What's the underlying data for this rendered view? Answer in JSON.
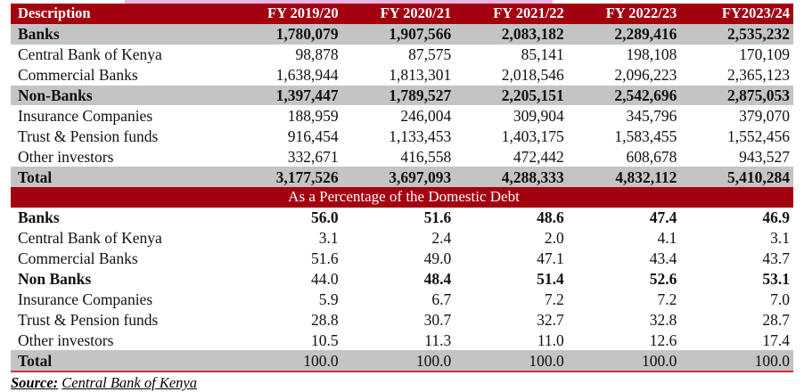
{
  "header": [
    "Description",
    "FY 2019/20",
    "FY 2020/21",
    "FY 2021/22",
    "FY 2022/23",
    "FY2023/24"
  ],
  "amounts": [
    {
      "label": "Banks",
      "values": [
        "1,780,079",
        "1,907,566",
        "2,083,182",
        "2,289,416",
        "2,535,232"
      ],
      "style": "total",
      "bold": [
        1,
        1,
        1,
        1,
        1
      ]
    },
    {
      "label": "Central Bank of Kenya",
      "values": [
        "98,878",
        "87,575",
        "85,141",
        "198,108",
        "170,109"
      ],
      "style": "",
      "bold": [
        0,
        0,
        0,
        0,
        0
      ]
    },
    {
      "label": "Commercial Banks",
      "values": [
        "1,638,944",
        "1,813,301",
        "2,018,546",
        "2,096,223",
        "2,365,123"
      ],
      "style": "",
      "bold": [
        0,
        0,
        0,
        0,
        0
      ]
    },
    {
      "label": "Non-Banks",
      "values": [
        "1,397,447",
        "1,789,527",
        "2,205,151",
        "2,542,696",
        "2,875,053"
      ],
      "style": "total",
      "bold": [
        1,
        1,
        1,
        1,
        1
      ]
    },
    {
      "label": "Insurance Companies",
      "values": [
        "188,959",
        "246,004",
        "309,904",
        "345,796",
        "379,070"
      ],
      "style": "",
      "bold": [
        0,
        0,
        0,
        0,
        0
      ]
    },
    {
      "label": "Trust & Pension funds",
      "values": [
        "916,454",
        "1,133,453",
        "1,403,175",
        "1,583,455",
        "1,552,456"
      ],
      "style": "",
      "bold": [
        0,
        0,
        0,
        0,
        0
      ]
    },
    {
      "label": "Other investors",
      "values": [
        "332,671",
        "416,558",
        "472,442",
        "608,678",
        "943,527"
      ],
      "style": "",
      "bold": [
        0,
        0,
        0,
        0,
        0
      ]
    },
    {
      "label": "Total",
      "values": [
        "3,177,526",
        "3,697,093",
        "4,288,333",
        "4,832,112",
        "5,410,284"
      ],
      "style": "total",
      "bold": [
        1,
        1,
        1,
        1,
        1
      ]
    }
  ],
  "section_title": "As a Percentage of the Domestic Debt",
  "percentages": [
    {
      "label": "Banks",
      "values": [
        "56.0",
        "51.6",
        "48.6",
        "47.4",
        "46.9"
      ],
      "style": "bold",
      "bold": [
        1,
        1,
        1,
        1,
        1
      ]
    },
    {
      "label": "Central Bank of Kenya",
      "values": [
        "3.1",
        "2.4",
        "2.0",
        "4.1",
        "3.1"
      ],
      "style": "",
      "bold": [
        0,
        0,
        0,
        0,
        0
      ]
    },
    {
      "label": "Commercial Banks",
      "values": [
        "51.6",
        "49.0",
        "47.1",
        "43.4",
        "43.7"
      ],
      "style": "",
      "bold": [
        0,
        0,
        0,
        0,
        0
      ]
    },
    {
      "label": "Non Banks",
      "values": [
        "44.0",
        "48.4",
        "51.4",
        "52.6",
        "53.1"
      ],
      "style": "bold",
      "bold": [
        0,
        1,
        1,
        1,
        1
      ]
    },
    {
      "label": "Insurance Companies",
      "values": [
        "5.9",
        "6.7",
        "7.2",
        "7.2",
        "7.0"
      ],
      "style": "",
      "bold": [
        0,
        0,
        0,
        0,
        0
      ]
    },
    {
      "label": "Trust & Pension funds",
      "values": [
        "28.8",
        "30.7",
        "32.7",
        "32.8",
        "28.7"
      ],
      "style": "",
      "bold": [
        0,
        0,
        0,
        0,
        0
      ]
    },
    {
      "label": "Other investors",
      "values": [
        "10.5",
        "11.3",
        "11.0",
        "12.6",
        "17.4"
      ],
      "style": "",
      "bold": [
        0,
        0,
        0,
        0,
        0
      ]
    },
    {
      "label": "Total",
      "values": [
        "100.0",
        "100.0",
        "100.0",
        "100.0",
        "100.0"
      ],
      "style": "total-last",
      "bold": [
        0,
        0,
        0,
        0,
        0
      ]
    }
  ],
  "source": {
    "label": "Source:",
    "text": "Central Bank of Kenya"
  },
  "colors": {
    "header_bg": "#a30010",
    "total_bg": "#c4c4c4"
  }
}
